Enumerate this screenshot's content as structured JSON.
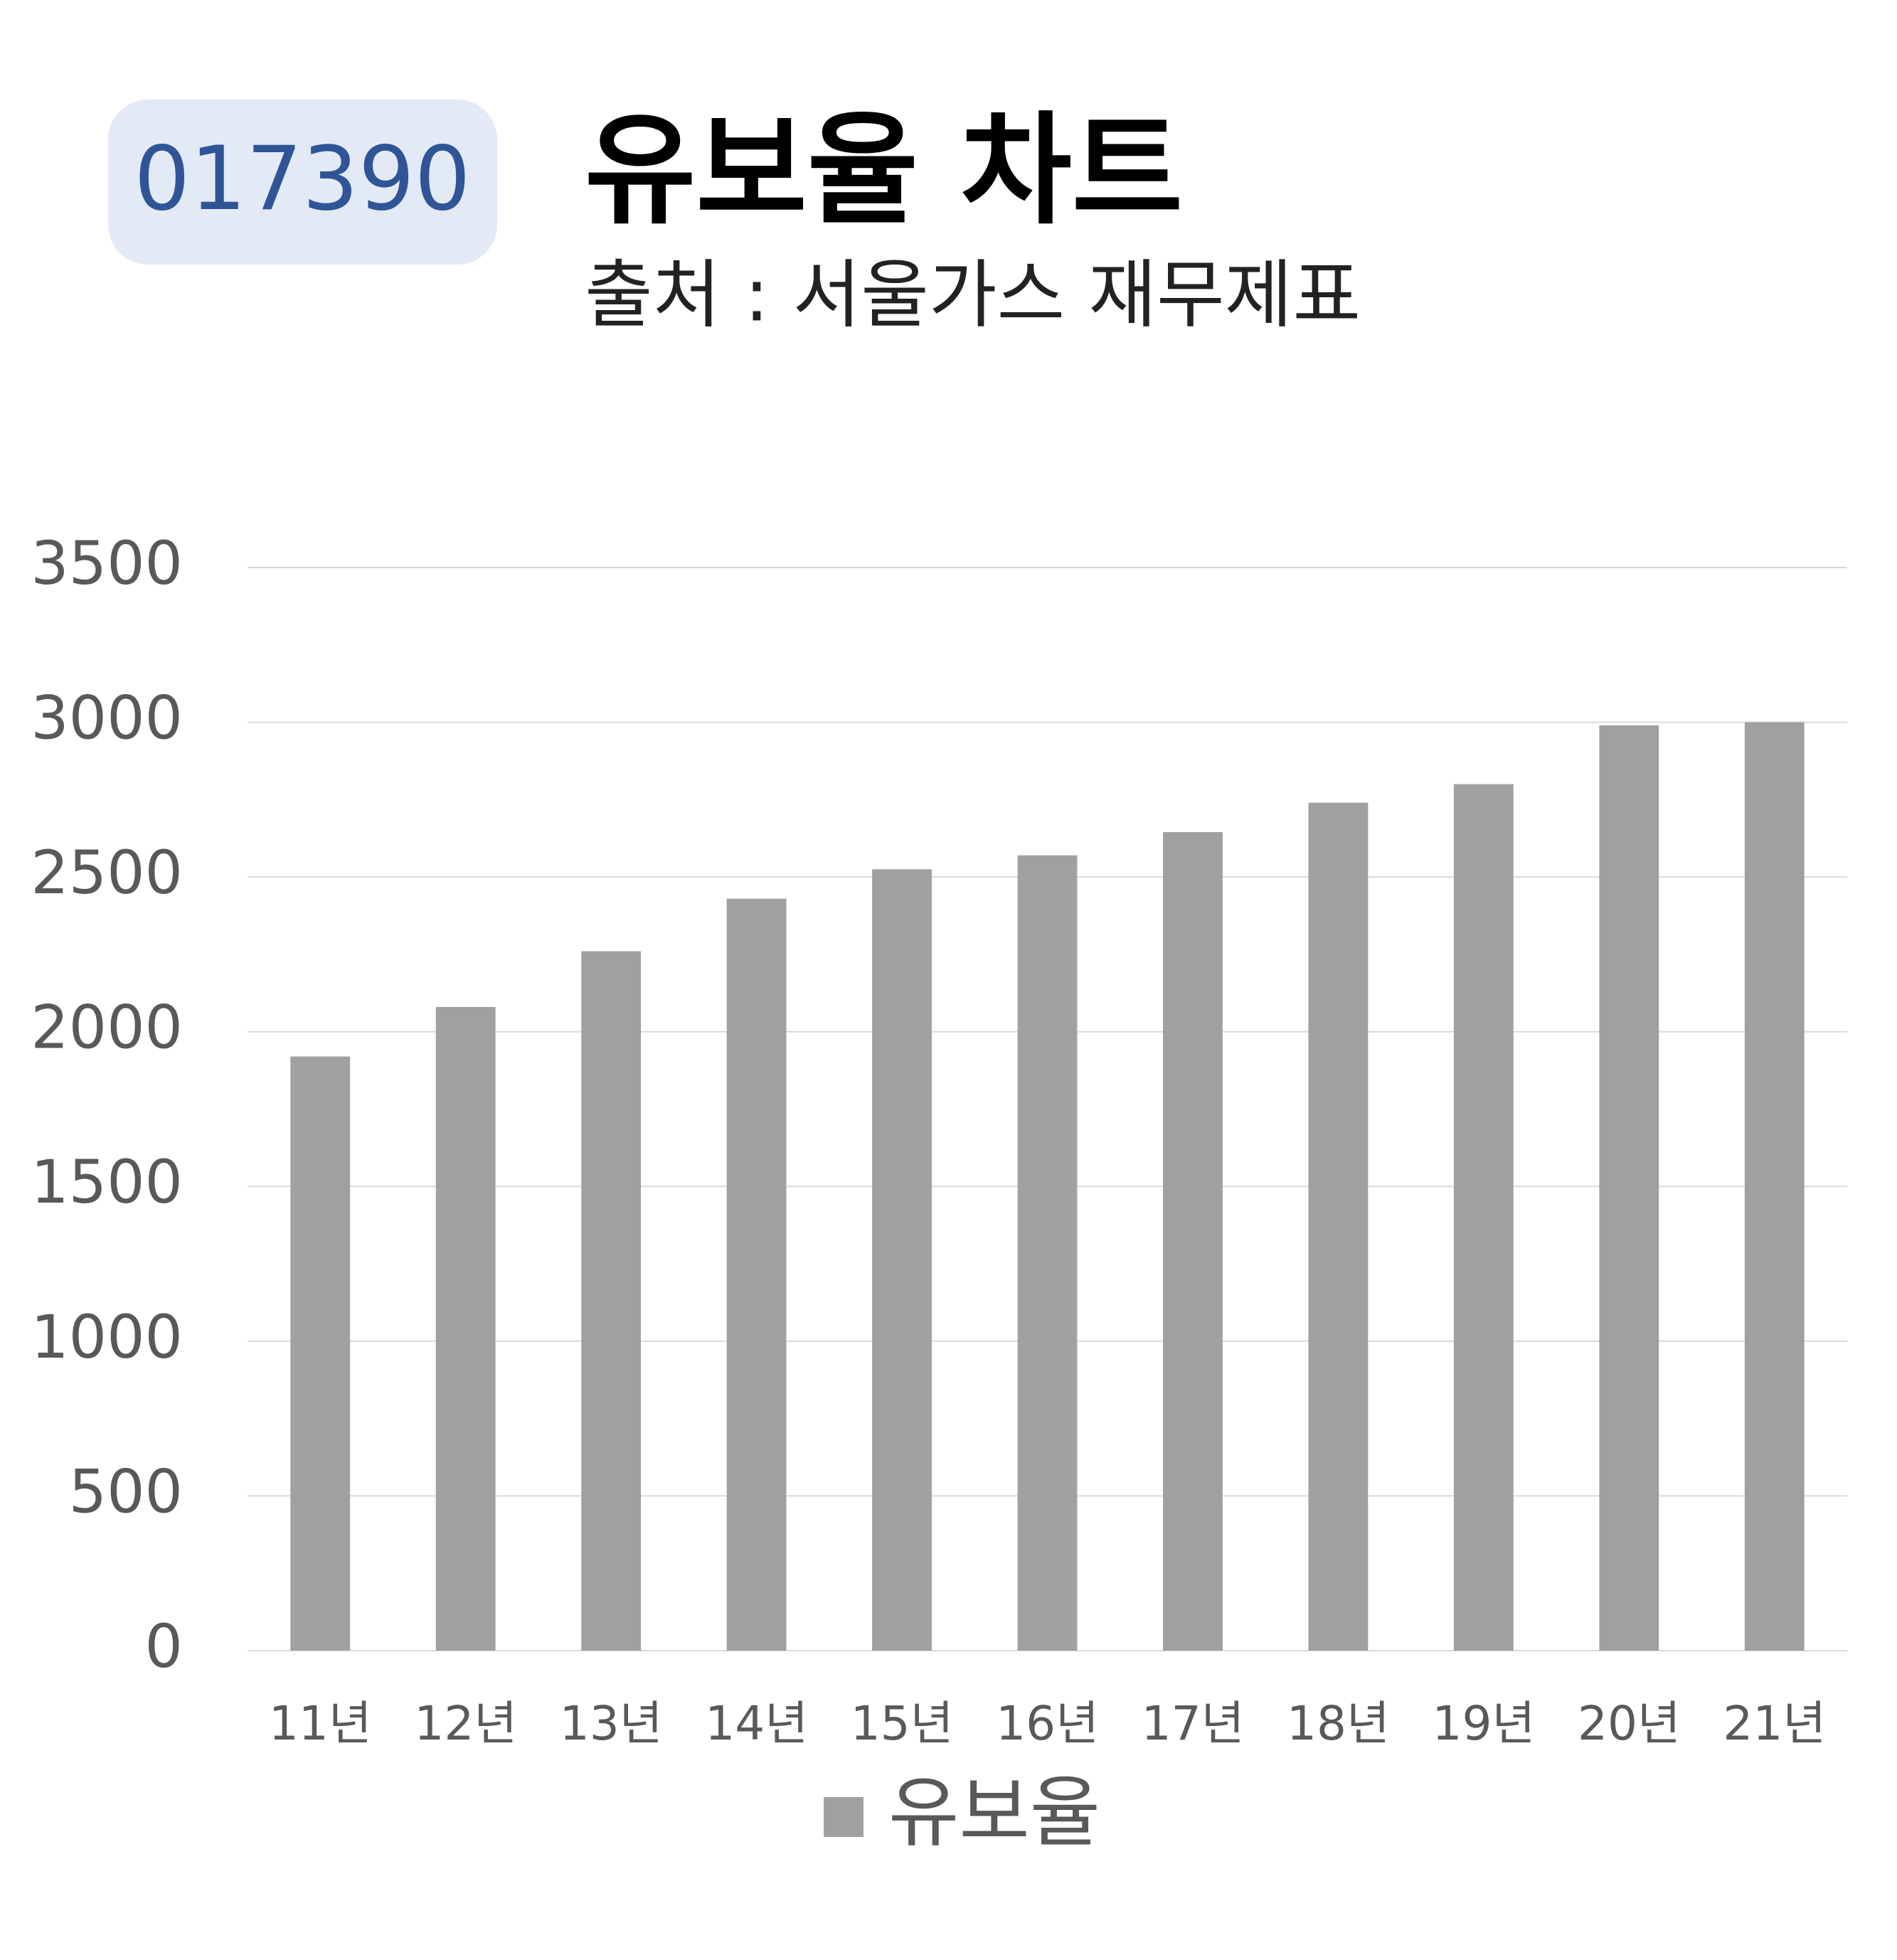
{
  "badge": "017390",
  "chart_data": {
    "type": "bar",
    "title": "유보율 차트",
    "subtitle": "출처 : 서울가스 재무제표",
    "categories": [
      "11년",
      "12년",
      "13년",
      "14년",
      "15년",
      "16년",
      "17년",
      "18년",
      "19년",
      "20년",
      "21년"
    ],
    "series": [
      {
        "name": "유보율",
        "color": "#a0a0a0",
        "values": [
          1920,
          2080,
          2260,
          2430,
          2525,
          2570,
          2645,
          2740,
          2800,
          2990,
          3000
        ]
      }
    ],
    "ylim": [
      0,
      3500
    ],
    "yticks": [
      0,
      500,
      1000,
      1500,
      2000,
      2500,
      3000,
      3500
    ],
    "grid": true,
    "legend": "bottom"
  }
}
